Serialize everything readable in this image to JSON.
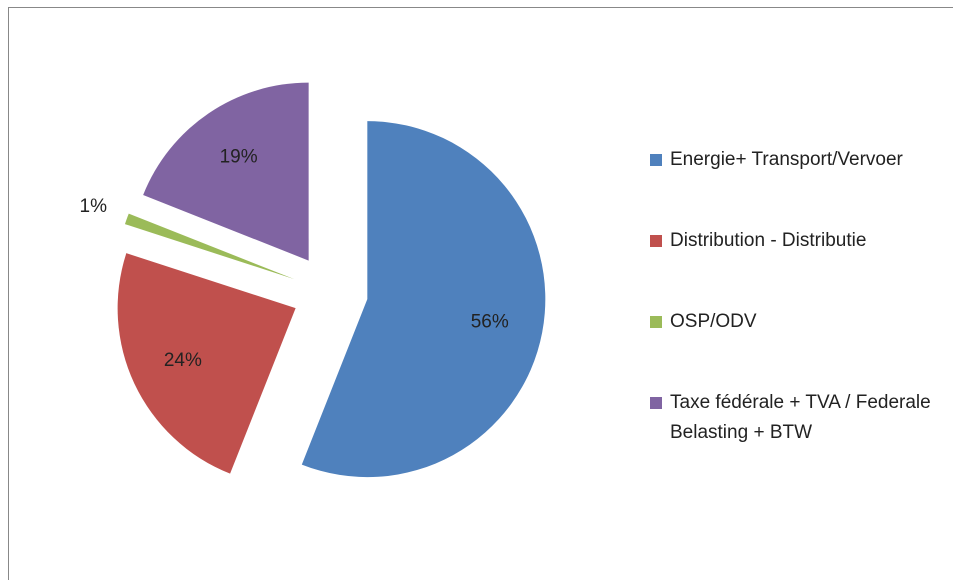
{
  "chart_data": {
    "type": "pie",
    "categories": [
      "Energie+ Transport/Vervoer",
      "Distribution - Distributie",
      "OSP/ODV",
      "Taxe fédérale + TVA / Federale Belasting + BTW"
    ],
    "values": [
      56,
      24,
      1,
      19
    ],
    "value_labels": [
      "56%",
      "24%",
      "1%",
      "19%"
    ],
    "colors": [
      "#4f81bd",
      "#c0504d",
      "#9bbb59",
      "#8064a2"
    ],
    "exploded": true,
    "legend": "right"
  }
}
